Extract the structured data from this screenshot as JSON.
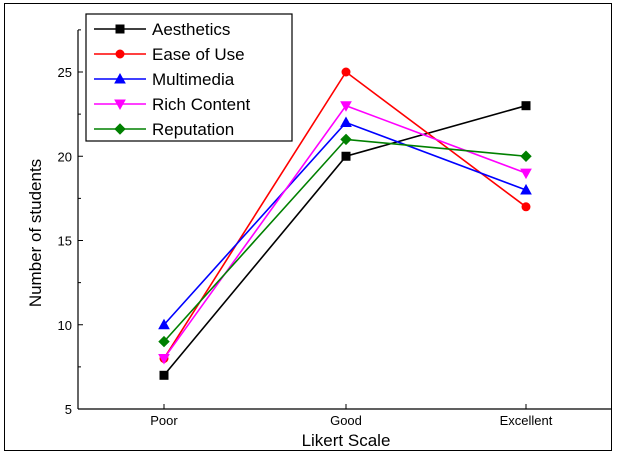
{
  "chart_data": {
    "type": "line",
    "title": "",
    "xlabel": "Likert Scale",
    "ylabel": "Number of students",
    "categories": [
      "Poor",
      "Good",
      "Excellent"
    ],
    "ylim": [
      5,
      27.5
    ],
    "yticks": [
      5,
      10,
      15,
      20,
      25
    ],
    "grid": false,
    "legend_position": "top-left",
    "series": [
      {
        "name": "Aesthetics",
        "values": [
          7,
          20,
          23
        ],
        "color": "#000000",
        "marker": "square"
      },
      {
        "name": "Ease of Use",
        "values": [
          8,
          25,
          17
        ],
        "color": "#ff0000",
        "marker": "circle"
      },
      {
        "name": "Multimedia",
        "values": [
          10,
          22,
          18
        ],
        "color": "#0000ff",
        "marker": "triangle-up"
      },
      {
        "name": "Rich Content",
        "values": [
          8,
          23,
          19
        ],
        "color": "#ff00ff",
        "marker": "triangle-down"
      },
      {
        "name": "Reputation",
        "values": [
          9,
          21,
          20
        ],
        "color": "#008000",
        "marker": "diamond"
      }
    ]
  }
}
